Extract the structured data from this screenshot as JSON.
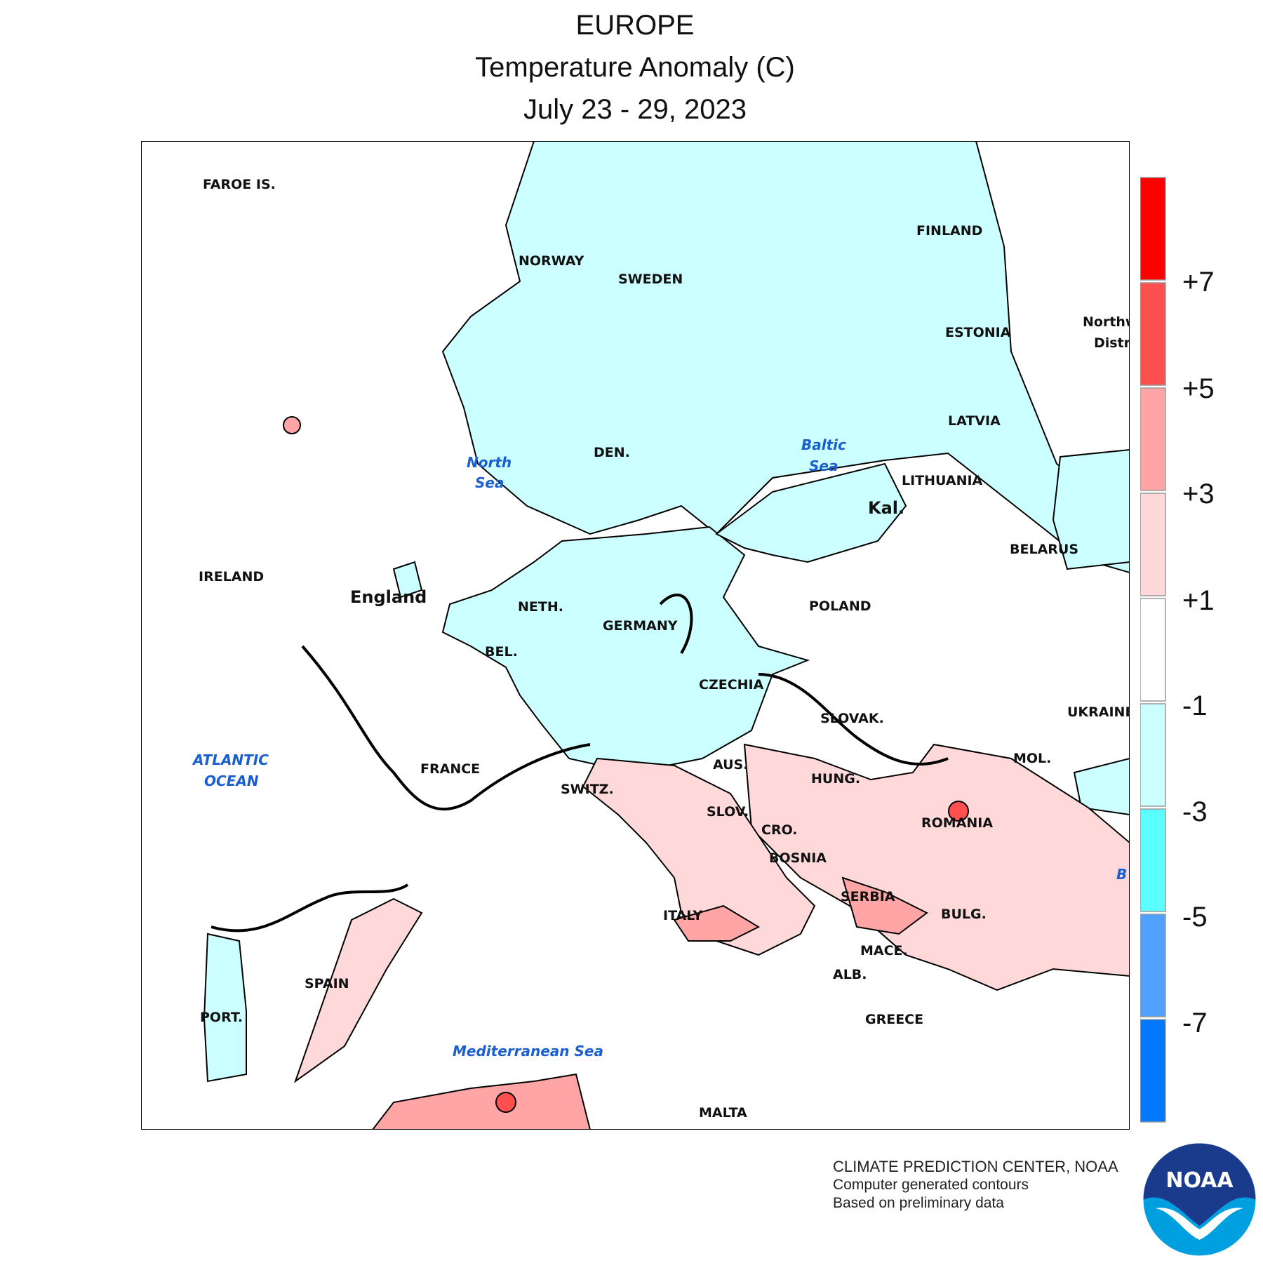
{
  "title": {
    "region": "EUROPE",
    "variable": "Temperature Anomaly (C)",
    "period": "July 23 - 29, 2023"
  },
  "map": {
    "labels": {
      "faroe": "FAROE IS.",
      "norway": "NORWAY",
      "sweden": "SWEDEN",
      "finland": "FINLAND",
      "estonia": "ESTONIA",
      "latvia": "LATVIA",
      "lithuania": "LITHUANIA",
      "kal": "Kal.",
      "belarus": "BELARUS",
      "northwest1": "Northw",
      "northwest2": "Distri",
      "ireland": "IRELAND",
      "england": "England",
      "den": "DEN.",
      "neth": "NETH.",
      "bel": "BEL.",
      "germany": "GERMANY",
      "poland": "POLAND",
      "czechia": "CZECHIA",
      "slovak": "SLOVAK.",
      "ukraine": "UKRAINE",
      "mol": "MOL.",
      "france": "FRANCE",
      "switz": "SWITZ.",
      "aus": "AUS.",
      "hung": "HUNG.",
      "slov": "SLOV.",
      "cro": "CRO.",
      "romania": "ROMANIA",
      "bosnia": "BOSNIA",
      "serbia": "SERBIA",
      "bulg": "BULG.",
      "italy": "ITALY",
      "mace": "MACE.",
      "alb": "ALB.",
      "greece": "GREECE",
      "spain": "SPAIN",
      "port": "PORT.",
      "malta": "MALTA",
      "b_edge": "B"
    },
    "seas": {
      "north1": "North",
      "north2": "Sea",
      "baltic1": "Baltic",
      "baltic2": "Sea",
      "atlantic1": "ATLANTIC",
      "atlantic2": "OCEAN",
      "med": "Mediterranean Sea"
    },
    "anomaly_regions": [
      {
        "region": "Scandinavia, Germany, Baltics",
        "category": "-3 to -1"
      },
      {
        "region": "Portugal",
        "category": "-3 to -1"
      },
      {
        "region": "Italy, Balkans, Greece, Turkey",
        "category": "+1 to +3"
      },
      {
        "region": "Eastern Spain",
        "category": "+1 to +3"
      },
      {
        "region": "North Africa",
        "category": "+3 to +7"
      }
    ]
  },
  "legend": {
    "colors": [
      "#ff0000",
      "#ff5050",
      "#ffa5a5",
      "#ffd9d9",
      "#ffffff",
      "#ccffff",
      "#5cffff",
      "#50a0ff",
      "#0078ff"
    ],
    "levels": [
      "+7",
      "+5",
      "+3",
      "+1",
      "-1",
      "-3",
      "-5",
      "-7"
    ]
  },
  "credit": {
    "line1": "CLIMATE PREDICTION CENTER, NOAA",
    "line2": "Computer generated contours",
    "line3": "Based on preliminary data"
  },
  "logo": {
    "text": "NOAA",
    "colors": {
      "top": "#1a3a8c",
      "bottom": "#00a0e0"
    }
  }
}
